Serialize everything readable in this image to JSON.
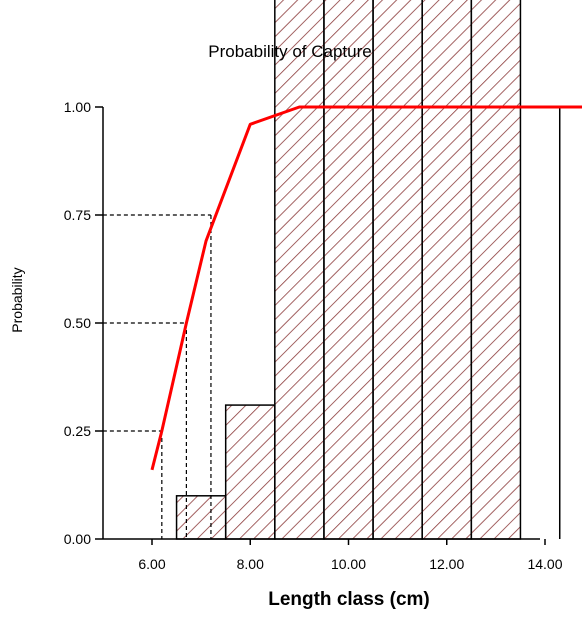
{
  "chart_data": {
    "type": "bar",
    "title": "Probability of Capture",
    "xlabel": "Length class (cm)",
    "ylabel": "Probability",
    "xlim": [
      5.0,
      15.0
    ],
    "ylim": [
      0,
      1.0
    ],
    "x_ticks": [
      "6.00",
      "8.00",
      "10.00",
      "12.00",
      "14.00"
    ],
    "y_ticks": [
      "0.00",
      "0.25",
      "0.50",
      "0.75",
      "1.00"
    ],
    "histogram": {
      "bin_edges": [
        6.5,
        7.5,
        8.5,
        9.5,
        10.5,
        11.5,
        12.5,
        13.5
      ],
      "values": [
        0.1,
        0.31,
        1.0,
        1.0,
        1.0,
        1.0,
        1.0
      ],
      "fill": "hatched",
      "color": "#8b3a3a"
    },
    "extra_bar_edge_x": 14.3,
    "series": [
      {
        "x": [
          6.0,
          6.2,
          6.7,
          7.1,
          8.0,
          9.0,
          10.0,
          11.0,
          12.0,
          13.0,
          14.0,
          15.0
        ],
        "values": [
          0.16,
          0.25,
          0.5,
          0.69,
          0.96,
          1.0,
          1.0,
          1.0,
          1.0,
          1.0,
          1.0,
          1.0
        ],
        "color": "#ff0000"
      }
    ],
    "reference_lines": [
      {
        "y": 0.25,
        "x": 6.2
      },
      {
        "y": 0.5,
        "x": 6.7
      },
      {
        "y": 0.75,
        "x": 7.2
      }
    ],
    "grid": false,
    "legend": "none"
  }
}
